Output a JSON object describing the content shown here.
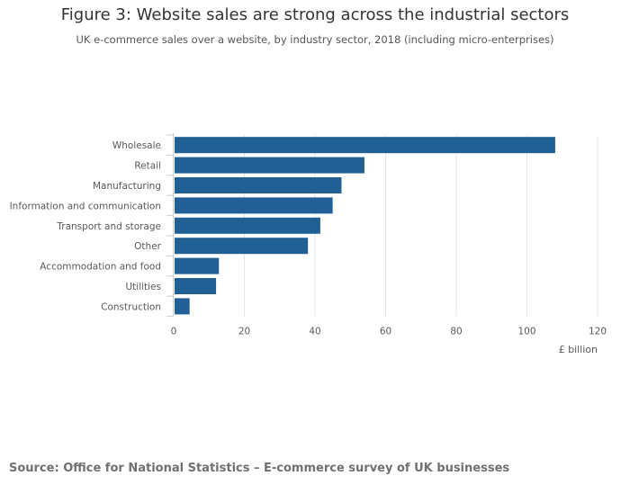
{
  "header": {
    "title": "Figure 3: Website sales are strong across the industrial sectors",
    "subtitle": "UK e-commerce sales over a website, by industry sector, 2018 (including micro-enterprises)"
  },
  "footer": {
    "source": "Source: Office for National Statistics – E-commerce survey of UK businesses"
  },
  "colors": {
    "bar": "#206095",
    "grid": "#e6e6e6",
    "axis": "#cccccc",
    "text": "#595959"
  },
  "chart_data": {
    "type": "bar",
    "orientation": "horizontal",
    "title": "Figure 3: Website sales are strong across the industrial sectors",
    "subtitle": "UK e-commerce sales over a website, by industry sector, 2018 (including micro-enterprises)",
    "xlabel": "£ billion",
    "ylabel": "",
    "xlim": [
      0,
      120
    ],
    "ticks": [
      0,
      20,
      40,
      60,
      80,
      100,
      120
    ],
    "grid": true,
    "categories": [
      "Wholesale",
      "Retail",
      "Manufacturing",
      "Information and communication",
      "Transport and storage",
      "Other",
      "Accommodation and food",
      "Utilities",
      "Construction"
    ],
    "values": [
      108,
      54,
      47.5,
      45,
      41.5,
      38,
      12.8,
      12,
      4.5
    ]
  }
}
